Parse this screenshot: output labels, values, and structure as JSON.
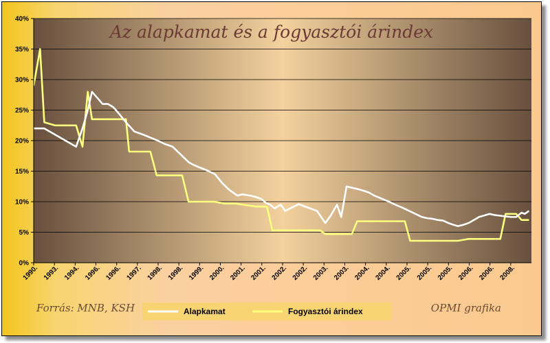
{
  "chart_data": {
    "type": "line",
    "title": "Az alapkamat és a fogyasztói árindex",
    "ylim": [
      0,
      40
    ],
    "y_ticks": [
      "0%",
      "5%",
      "10%",
      "15%",
      "20%",
      "25%",
      "30%",
      "35%",
      "40%"
    ],
    "x_tick_labels": [
      "1990.",
      "1993.",
      "1994.",
      "1996.",
      "1996.",
      "1997.",
      "1998.",
      "1998.",
      "1999.",
      "2000.",
      "2001.",
      "2001.",
      "2002.",
      "2002.",
      "2003.",
      "2003.",
      "2004.",
      "2004.",
      "2005.",
      "2005.",
      "2005.",
      "2006.",
      "2006.",
      "2008."
    ],
    "grid": true,
    "legend": "bottom",
    "source": "Forrás: MNB, KSH",
    "credit": "OPMI grafika",
    "series": [
      {
        "name": "Alapkamat",
        "color": "#ffffff",
        "x": [
          0,
          0.6,
          1.0,
          2.0,
          3.0,
          4.0,
          4.6,
          5.1,
          5.5,
          6.0,
          6.5,
          7.0,
          7.5,
          8.0,
          8.7,
          9.5,
          10.3,
          11.0,
          11.7,
          12.3,
          13.1,
          14.0,
          14.6,
          15.1,
          15.8,
          16.5,
          17.1,
          17.8,
          18.4,
          19.2,
          19.7,
          20.4,
          20.9,
          21.5,
          21.9,
          22.3,
          22.7,
          23.3,
          23.7,
          24.3,
          25.0,
          25.9,
          26.7,
          27.5,
          28.0,
          28.6,
          29.0,
          29.5,
          30.2,
          30.7,
          31.1,
          31.6,
          32.1,
          32.4,
          32.8,
          33.5,
          34.1,
          34.8,
          35.4,
          36.0,
          36.6,
          37.1,
          37.6,
          38.1,
          38.6,
          39.1,
          39.6,
          40.0,
          40.5,
          41.0,
          41.5,
          42.0,
          42.6,
          43.0,
          43.5,
          44.0,
          44.5,
          45.0,
          45.5,
          46.0,
          46.3,
          46.7
        ],
        "values": [
          22,
          22,
          22,
          21,
          20,
          19,
          22,
          25,
          28,
          27,
          26,
          26,
          25.5,
          24.5,
          23,
          21.5,
          21,
          20.5,
          20,
          19.5,
          19,
          17.5,
          16.5,
          16,
          15.5,
          15,
          14.5,
          13,
          12,
          11,
          11.2,
          11,
          10.8,
          10.4,
          9.8,
          9.5,
          8.9,
          9.5,
          8.5,
          9,
          9.6,
          9,
          8.5,
          6.5,
          7.7,
          9.5,
          7.5,
          12.5,
          12.2,
          12,
          11.8,
          11.5,
          11,
          10.8,
          10.5,
          10,
          9.5,
          9,
          8.5,
          8,
          7.5,
          7.3,
          7.2,
          7,
          6.9,
          6.5,
          6.2,
          6,
          6.2,
          6.5,
          7,
          7.5,
          7.8,
          8,
          7.8,
          7.7,
          7.6,
          7.5,
          7.5,
          8.2,
          8,
          8.5
        ]
      },
      {
        "name": "Fogyasztói árindex",
        "color": "#ffff80",
        "x": [
          0,
          0.6,
          1.0,
          2.0,
          3.0,
          4.0,
          4.6,
          5.1,
          5.5,
          6.0,
          7.0,
          8.0,
          8.7,
          9.0,
          11.0,
          11.6,
          14.0,
          14.6,
          16.0,
          17.0,
          18.0,
          19.0,
          21.0,
          22.0,
          22.5,
          27.0,
          27.5,
          30.0,
          30.5,
          35.0,
          35.5,
          40.0,
          41.0,
          43.0,
          43.5,
          44.0,
          44.5,
          45.0,
          45.5,
          46.0,
          46.7
        ],
        "values": [
          29,
          35,
          23,
          22.5,
          22.5,
          22.5,
          19,
          28,
          23.5,
          23.5,
          23.5,
          23.5,
          23.5,
          18.2,
          18.2,
          14.3,
          14.3,
          10,
          10,
          10,
          9.7,
          9.7,
          9.2,
          9.2,
          5.3,
          5.3,
          4.7,
          4.7,
          6.8,
          6.8,
          3.6,
          3.6,
          3.9,
          3.9,
          3.9,
          3.9,
          8,
          8,
          8,
          7,
          7
        ]
      }
    ]
  }
}
